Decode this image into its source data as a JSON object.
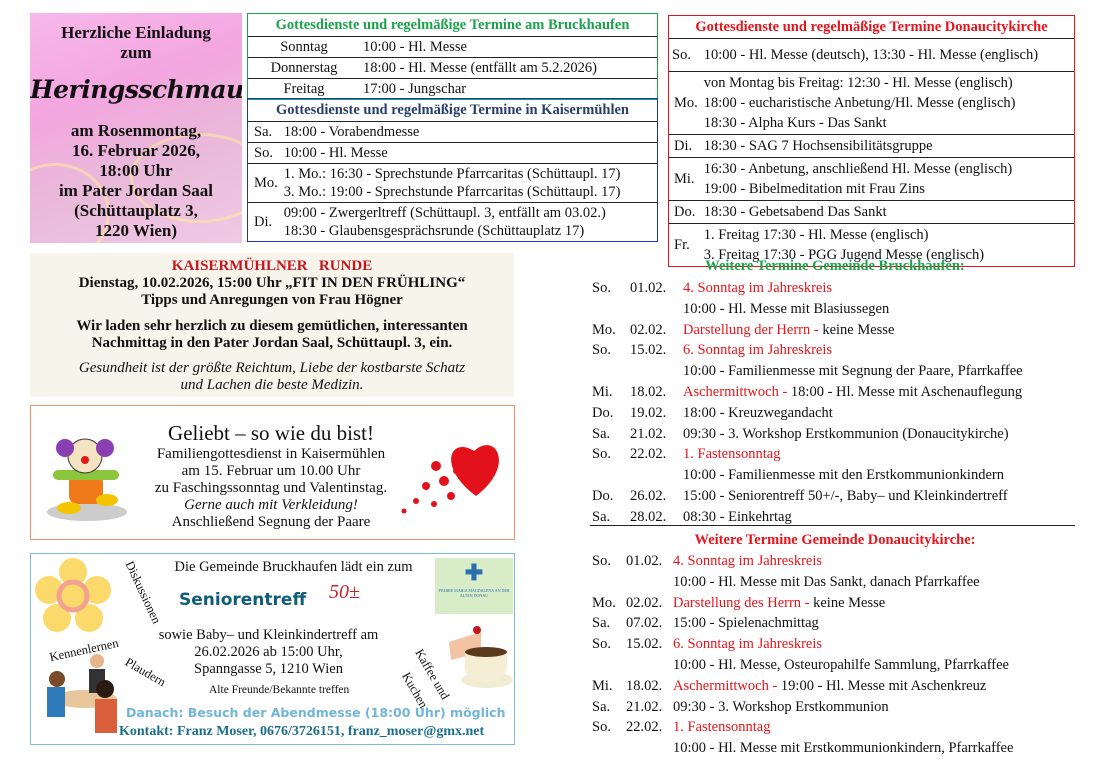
{
  "invite": {
    "lines_top": [
      "Herzliche Einladung",
      "zum"
    ],
    "title": "Heringsschmaus",
    "lines_bottom": [
      "am Rosenmontag,",
      "16. Februar 2026,",
      "18:00 Uhr",
      "im Pater Jordan Saal",
      "(Schüttauplatz 3,",
      "1220 Wien)"
    ]
  },
  "bruckhaufen_table": {
    "title": "Gottesdienste und regelmäßige Termine am Bruckhaufen",
    "rows": [
      {
        "day": "Sonntag",
        "lines": [
          "10:00 - Hl. Messe"
        ]
      },
      {
        "day": "Donnerstag",
        "lines": [
          "18:00 - Hl. Messe (entfällt am 5.2.2026)"
        ]
      },
      {
        "day": "Freitag",
        "lines": [
          "17:00 - Jungschar"
        ]
      }
    ]
  },
  "kaisermuehlen_table": {
    "title": "Gottesdienste und regelmäßige Termine in Kaisermühlen",
    "rows": [
      {
        "day": "Sa.",
        "lines": [
          "18:00 - Vorabendmesse"
        ]
      },
      {
        "day": "So.",
        "lines": [
          "10:00 - Hl. Messe"
        ]
      },
      {
        "day": "Mo.",
        "lines": [
          "1. Mo.: 16:30 - Sprechstunde Pfarrcaritas (Schüttaupl. 17)",
          "3. Mo.: 19:00 - Sprechstunde Pfarrcaritas (Schüttaupl. 17)"
        ]
      },
      {
        "day": "Di.",
        "lines": [
          "09:00 - Zwergerltreff (Schüttaupl. 3, entfällt am 03.02.)",
          "18:30 - Glaubensgesprächsrunde (Schüttauplatz 17)"
        ]
      }
    ]
  },
  "donaucity_table": {
    "title": "Gottesdienste und regelmäßige Termine Donaucitykirche",
    "rows": [
      {
        "day": "So.",
        "lines": [
          "10:00 - Hl. Messe (deutsch), 13:30 - Hl. Messe (englisch)"
        ]
      },
      {
        "day": "Mo.",
        "lines": [
          "von Montag bis Freitag: 12:30 - Hl. Messe (englisch)",
          "18:00 - eucharistische Anbetung/Hl. Messe (englisch)",
          "18:30 - Alpha Kurs - Das Sankt"
        ]
      },
      {
        "day": "Di.",
        "lines": [
          "18:30 -  SAG 7 Hochsensibilitätsgruppe"
        ]
      },
      {
        "day": "Mi.",
        "lines": [
          "16:30 - Anbetung, anschließend Hl. Messe (englisch)",
          "19:00 - Bibelmeditation mit Frau Zins"
        ]
      },
      {
        "day": "Do.",
        "lines": [
          "18:30 - Gebetsabend Das Sankt"
        ]
      },
      {
        "day": "Fr.",
        "lines": [
          "1. Freitag 17:30 - Hl. Messe (englisch)",
          "3. Freitag 17:30 - PGG Jugend Messe (englisch)"
        ]
      }
    ]
  },
  "runde": {
    "title": "KAISERMÜHLNER   RUNDE",
    "line1": "Dienstag, 10.02.2026, 15:00 Uhr „FIT  IN  DEN  FRÜHLING“",
    "line2": "Tipps und Anregungen von Frau Högner",
    "line3": "Wir  laden sehr  herzlich  zu diesem gemütlichen, interessanten",
    "line4": "Nachmittag  in den Pater Jordan Saal, Schüttaupl. 3, ein.",
    "quote1": "Gesundheit ist der größte  Reichtum, Liebe der kostbarste Schatz",
    "quote2": "und Lachen die beste Medizin."
  },
  "family": {
    "title": "Geliebt – so wie du bist!",
    "line1": "Familiengottesdienst in Kaisermühlen",
    "line2": "am 15. Februar um 10.00 Uhr",
    "line3": "zu Faschingssonntag und Valentinstag.",
    "line4": "Gerne auch mit Verkleidung!",
    "line5": "Anschließend Segnung der Paare"
  },
  "senior": {
    "intro": "Die Gemeinde Bruckhaufen lädt ein zum",
    "title": "Seniorentreff",
    "badge": "50±",
    "line1": "sowie Baby– und Kleinkindertreff am",
    "line2": "26.02.2026 ab 15:00 Uhr,",
    "line3": "Spanngasse 5, 1210 Wien",
    "word_diskussionen": "Diskussionen",
    "word_kennenlernen": "Kennenlernen",
    "word_plaudern": "Plaudern",
    "word_freunde": "Alte Freunde/Bekannte treffen",
    "word_kaffee": "Kaffee und",
    "word_kuchen": "Kuchen",
    "logo_text": "PFARRE MARIA MAGDALENA AN DER ALTEN DONAU",
    "after": "Danach: Besuch der Abendmesse (18:00 Uhr) möglich",
    "contact": "Kontakt: Franz Moser, 0676/3726151, franz_moser@gmx.net"
  },
  "more_bruckhaufen": {
    "title": "Weitere Termine Gemeinde Bruckhaufen:",
    "rows": [
      {
        "day": "So.",
        "date": "01.02.",
        "red": "4. Sonntag im Jahreskreis",
        "text": ""
      },
      {
        "day": "",
        "date": "",
        "red": "",
        "text": "10:00 - Hl. Messe mit Blasiussegen"
      },
      {
        "day": "Mo.",
        "date": "02.02.",
        "red": "Darstellung der Herrn - ",
        "text": "keine Messe"
      },
      {
        "day": "So.",
        "date": "15.02.",
        "red": "6. Sonntag im Jahreskreis",
        "text": ""
      },
      {
        "day": "",
        "date": "",
        "red": "",
        "text": "10:00 - Familienmesse mit Segnung der Paare, Pfarrkaffee"
      },
      {
        "day": "Mi.",
        "date": "18.02.",
        "red": "Aschermittwoch - ",
        "text": "18:00 - Hl. Messe mit Aschenauflegung"
      },
      {
        "day": "Do.",
        "date": "19.02.",
        "red": "",
        "text": "18:00 - Kreuzwegandacht"
      },
      {
        "day": "Sa.",
        "date": "21.02.",
        "red": "",
        "text": "09:30 - 3. Workshop Erstkommunion (Donaucitykirche)"
      },
      {
        "day": "So.",
        "date": "22.02.",
        "red": "1. Fastensonntag",
        "text": ""
      },
      {
        "day": "",
        "date": "",
        "red": "",
        "text": "10:00 - Familienmesse mit den Erstkommunionkindern"
      },
      {
        "day": "Do.",
        "date": "26.02.",
        "red": "",
        "text": "15:00 - Seniorentreff 50+/-, Baby– und Kleinkindertreff"
      },
      {
        "day": "Sa.",
        "date": "28.02.",
        "red": "",
        "text": "08:30 - Einkehrtag"
      }
    ]
  },
  "more_donaucity": {
    "title": "Weitere Termine Gemeinde Donaucitykirche:",
    "rows": [
      {
        "day": "So.",
        "date": "01.02.",
        "red": "4. Sonntag im Jahreskreis",
        "text": ""
      },
      {
        "day": "",
        "date": "",
        "red": "",
        "text": "10:00 - Hl. Messe mit Das Sankt, danach Pfarrkaffee"
      },
      {
        "day": "Mo.",
        "date": "02.02.",
        "red": "Darstellung des Herrn - ",
        "text": "keine Messe"
      },
      {
        "day": "Sa.",
        "date": "07.02.",
        "red": "",
        "text": "15:00 - Spielenachmittag"
      },
      {
        "day": "So.",
        "date": "15.02.",
        "red": "6. Sonntag im Jahreskreis",
        "text": ""
      },
      {
        "day": "",
        "date": "",
        "red": "",
        "text": "10:00 - Hl. Messe, Osteuropahilfe Sammlung, Pfarrkaffee"
      },
      {
        "day": "Mi.",
        "date": "18.02.",
        "red": "Aschermittwoch - ",
        "text": "19:00 - Hl. Messe mit Aschenkreuz"
      },
      {
        "day": "Sa.",
        "date": "21.02.",
        "red": "",
        "text": "09:30 - 3. Workshop Erstkommunion"
      },
      {
        "day": "So.",
        "date": "22.02.",
        "red": "1. Fastensonntag",
        "text": ""
      },
      {
        "day": "",
        "date": "",
        "red": "",
        "text": "10:00 - Hl. Messe mit Erstkommunionkindern, Pfarrkaffee"
      }
    ]
  },
  "colors": {
    "green": "#1aa34a",
    "blue": "#1f2fd6",
    "red": "#e8141b",
    "teal": "#1b6e8a",
    "light_blue": "#7fbcd9",
    "orange": "#e9956a"
  }
}
